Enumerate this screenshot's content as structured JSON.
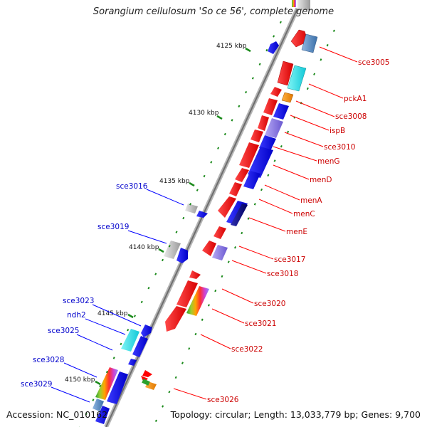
{
  "title": "Sorangium cellulosum 'So ce 56', complete genome",
  "footer": {
    "accession_label": "Accession: ",
    "accession": "NC_010162",
    "topology_label": "Topology: ",
    "topology": "circular",
    "length_label": "; Length: ",
    "length": "13,033,779 bp",
    "genes_label": "; Genes: ",
    "genes": "9,700"
  },
  "colors": {
    "backbone": "#8c8c8c",
    "forward_strand": "#ff0000",
    "reverse_strand": "#0000ff",
    "tick": "#1b8a1b",
    "label_right": "#cc0000",
    "label_left": "#0000cc",
    "cog_cyan": "#19e0e0",
    "cog_steel": "#4a86c2",
    "cog_gray": "#bdbdbd",
    "cog_lavender": "#8c7ce0",
    "cog_orange": "#f08a00",
    "cog_navy": "#000080",
    "cog_green": "#2ca02c"
  },
  "kbp_ticks": [
    "4125 kbp",
    "4130 kbp",
    "4135 kbp",
    "4140 kbp",
    "4145 kbp",
    "4150 kbp"
  ],
  "right_labels": [
    "sce3005",
    "pckA1",
    "sce3008",
    "ispB",
    "sce3010",
    "menG",
    "menD",
    "menA",
    "menC",
    "menE",
    "sce3017",
    "sce3018",
    "sce3020",
    "sce3021",
    "sce3022",
    "sce3026"
  ],
  "left_labels": [
    "sce3016",
    "sce3019",
    "sce3023",
    "ndh2",
    "sce3025",
    "sce3028",
    "sce3029"
  ]
}
